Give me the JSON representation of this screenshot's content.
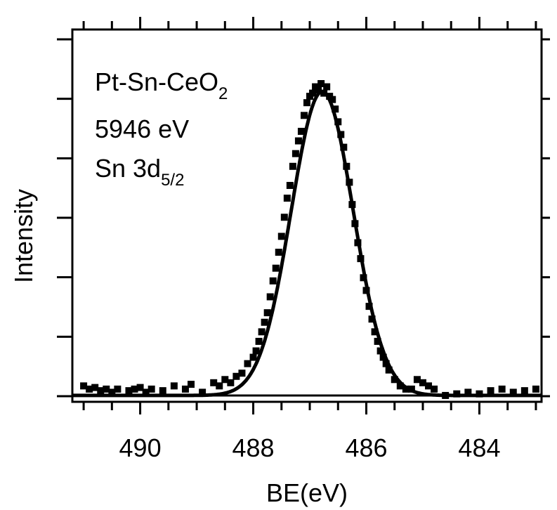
{
  "chart_data": {
    "type": "scatter",
    "title": "",
    "xlabel": "BE(eV)",
    "ylabel": "Intensity",
    "x_reversed": true,
    "xlim": [
      491.2,
      482.9
    ],
    "ylim": [
      -0.02,
      1.15
    ],
    "x_ticks": [
      490,
      488,
      486,
      484
    ],
    "y_ticks_labeled": false,
    "grid": false,
    "annotations": {
      "sample_main": "Pt-Sn-CeO",
      "sample_sub": "2",
      "energy": "5946 eV",
      "orbital_main": "Sn 3d",
      "orbital_sub": "5/2"
    },
    "series": [
      {
        "style": "markers",
        "color": "#000000",
        "x": [
          491.0,
          490.9,
          490.8,
          490.7,
          490.6,
          490.5,
          490.4,
          490.2,
          490.1,
          490.0,
          489.9,
          489.8,
          489.6,
          489.4,
          489.2,
          489.1,
          488.9,
          488.7,
          488.6,
          488.5,
          488.4,
          488.3,
          488.2,
          488.1,
          488.0,
          487.95,
          487.9,
          487.85,
          487.8,
          487.75,
          487.7,
          487.65,
          487.6,
          487.55,
          487.5,
          487.45,
          487.4,
          487.35,
          487.3,
          487.25,
          487.2,
          487.15,
          487.1,
          487.05,
          487.0,
          486.95,
          486.9,
          486.85,
          486.8,
          486.75,
          486.7,
          486.65,
          486.6,
          486.55,
          486.5,
          486.45,
          486.4,
          486.35,
          486.3,
          486.25,
          486.2,
          486.15,
          486.1,
          486.05,
          486.0,
          485.95,
          485.9,
          485.85,
          485.8,
          485.75,
          485.7,
          485.65,
          485.6,
          485.5,
          485.4,
          485.3,
          485.2,
          485.1,
          485.0,
          484.9,
          484.8,
          484.6,
          484.4,
          484.2,
          484.0,
          483.8,
          483.6,
          483.4,
          483.2,
          483.0
        ],
        "y": [
          0.03,
          0.02,
          0.025,
          0.015,
          0.02,
          0.01,
          0.02,
          0.015,
          0.02,
          0.025,
          0.01,
          0.02,
          0.015,
          0.03,
          0.02,
          0.035,
          0.01,
          0.04,
          0.03,
          0.05,
          0.04,
          0.06,
          0.07,
          0.1,
          0.12,
          0.14,
          0.17,
          0.2,
          0.23,
          0.26,
          0.31,
          0.36,
          0.4,
          0.45,
          0.5,
          0.56,
          0.62,
          0.66,
          0.72,
          0.76,
          0.8,
          0.83,
          0.88,
          0.92,
          0.94,
          0.95,
          0.97,
          0.96,
          0.98,
          0.95,
          0.97,
          0.94,
          0.93,
          0.9,
          0.86,
          0.82,
          0.78,
          0.72,
          0.67,
          0.6,
          0.54,
          0.48,
          0.43,
          0.37,
          0.33,
          0.28,
          0.24,
          0.2,
          0.17,
          0.14,
          0.12,
          0.1,
          0.08,
          0.05,
          0.03,
          0.02,
          0.02,
          0.05,
          0.04,
          0.03,
          0.02,
          0.0,
          0.005,
          0.01,
          0.005,
          0.015,
          0.02,
          0.01,
          0.015,
          0.02
        ]
      },
      {
        "style": "line",
        "color": "#000000",
        "fit": "gaussian",
        "center": 486.78,
        "amplitude": 0.955,
        "sigma": 0.55,
        "baseline": 0.0
      }
    ]
  }
}
